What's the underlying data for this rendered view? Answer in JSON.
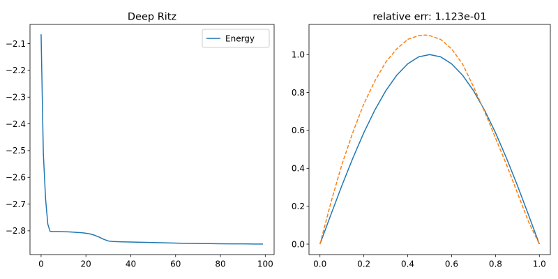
{
  "chart_data": [
    {
      "type": "line",
      "title": "Deep Ritz",
      "xlabel": "",
      "ylabel": "",
      "xlim": [
        -4.95,
        103.95
      ],
      "ylim": [
        -2.889,
        -2.028
      ],
      "xticks": [
        0,
        20,
        40,
        60,
        80,
        100
      ],
      "yticks": [
        -2.1,
        -2.2,
        -2.3,
        -2.4,
        -2.5,
        -2.6,
        -2.7,
        -2.8
      ],
      "xtick_labels": [
        "0",
        "20",
        "40",
        "60",
        "80",
        "100"
      ],
      "ytick_labels": [
        "−2.1",
        "−2.2",
        "−2.3",
        "−2.4",
        "−2.5",
        "−2.6",
        "−2.7",
        "−2.8"
      ],
      "grid": false,
      "legend_position": "top-right",
      "series": [
        {
          "name": "Energy",
          "color": "#1f77b4",
          "style": "solid",
          "x": [
            0,
            1,
            2,
            3,
            4,
            5,
            6,
            8,
            10,
            12,
            14,
            16,
            18,
            20,
            22,
            24,
            26,
            28,
            30,
            32,
            35,
            40,
            45,
            50,
            55,
            60,
            65,
            70,
            75,
            80,
            85,
            90,
            95,
            99
          ],
          "y": [
            -2.065,
            -2.51,
            -2.68,
            -2.775,
            -2.802,
            -2.803,
            -2.803,
            -2.803,
            -2.8035,
            -2.804,
            -2.805,
            -2.806,
            -2.807,
            -2.809,
            -2.812,
            -2.817,
            -2.824,
            -2.832,
            -2.838,
            -2.84,
            -2.841,
            -2.842,
            -2.843,
            -2.844,
            -2.845,
            -2.846,
            -2.847,
            -2.8475,
            -2.848,
            -2.8485,
            -2.849,
            -2.849,
            -2.8495,
            -2.8495
          ]
        }
      ]
    },
    {
      "type": "line",
      "title": "relative err: 1.123e-01",
      "xlabel": "",
      "ylabel": "",
      "xlim": [
        -0.05,
        1.05
      ],
      "ylim": [
        -0.0552,
        1.159
      ],
      "xticks": [
        0.0,
        0.2,
        0.4,
        0.6,
        0.8,
        1.0
      ],
      "yticks": [
        0.0,
        0.2,
        0.4,
        0.6,
        0.8,
        1.0
      ],
      "xtick_labels": [
        "0.0",
        "0.2",
        "0.4",
        "0.6",
        "0.8",
        "1.0"
      ],
      "ytick_labels": [
        "0.0",
        "0.2",
        "0.4",
        "0.6",
        "0.8",
        "1.0"
      ],
      "grid": false,
      "series": [
        {
          "color": "#1f77b4",
          "style": "solid",
          "x": [
            0.0,
            0.05,
            0.1,
            0.15,
            0.2,
            0.25,
            0.3,
            0.35,
            0.4,
            0.45,
            0.5,
            0.55,
            0.6,
            0.65,
            0.7,
            0.75,
            0.8,
            0.85,
            0.9,
            0.95,
            1.0
          ],
          "y": [
            0.0,
            0.156,
            0.309,
            0.454,
            0.588,
            0.707,
            0.809,
            0.891,
            0.951,
            0.988,
            1.0,
            0.988,
            0.951,
            0.891,
            0.809,
            0.707,
            0.588,
            0.454,
            0.309,
            0.156,
            0.0
          ]
        },
        {
          "color": "#ff7f0e",
          "style": "dashed",
          "x": [
            0.0,
            0.05,
            0.1,
            0.15,
            0.2,
            0.25,
            0.3,
            0.35,
            0.4,
            0.45,
            0.48,
            0.5,
            0.55,
            0.6,
            0.65,
            0.7,
            0.75,
            0.8,
            0.85,
            0.9,
            0.95,
            1.0
          ],
          "y": [
            0.0,
            0.22,
            0.42,
            0.59,
            0.74,
            0.86,
            0.96,
            1.03,
            1.08,
            1.1,
            1.103,
            1.1,
            1.08,
            1.03,
            0.95,
            0.83,
            0.7,
            0.56,
            0.42,
            0.27,
            0.12,
            0.0
          ]
        }
      ]
    }
  ]
}
